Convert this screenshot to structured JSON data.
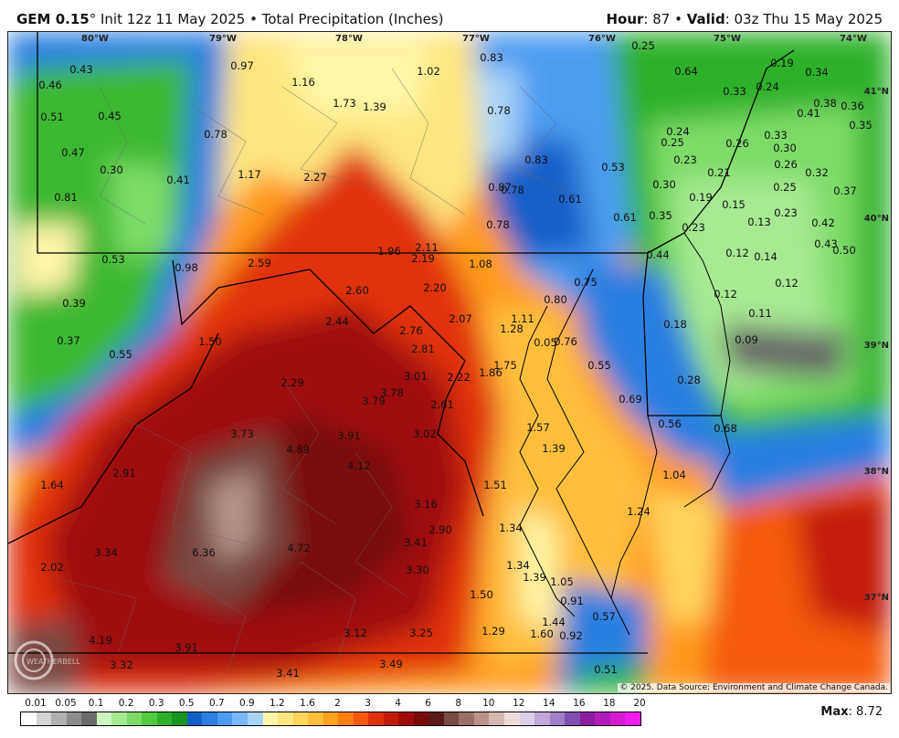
{
  "header": {
    "model": "GEM 0.15",
    "degree": "°",
    "init": "Init 12z 11 May 2025",
    "separator": "•",
    "product": "Total Precipitation (Inches)",
    "hour_label": "Hour",
    "hour_value": ": 87",
    "valid_label": "Valid",
    "valid_value": ": 03z Thu 15 May 2025"
  },
  "map": {
    "lon_labels": [
      "80°W",
      "79°W",
      "78°W",
      "77°W",
      "76°W",
      "75°W",
      "74°W"
    ],
    "lat_labels": [
      "41°N",
      "40°N",
      "39°N",
      "38°N",
      "37°N"
    ],
    "values": [
      "0.43",
      "0.46",
      "0.51",
      "0.45",
      "0.47",
      "0.30",
      "0.41",
      "0.81",
      "0.78",
      "0.97",
      "1.16",
      "1.02",
      "0.83",
      "1.73",
      "1.39",
      "0.78",
      "0.64",
      "0.25",
      "0.19",
      "0.34",
      "0.24",
      "0.33",
      "0.38",
      "0.41",
      "0.36",
      "0.35",
      "0.24",
      "0.25",
      "0.26",
      "0.33",
      "0.30",
      "0.23",
      "0.26",
      "0.32",
      "0.21",
      "0.83",
      "0.53",
      "0.30",
      "0.19",
      "0.15",
      "0.25",
      "0.37",
      "1.17",
      "2.27",
      "0.87",
      "0.78",
      "0.61",
      "0.78",
      "0.61",
      "0.35",
      "0.23",
      "0.13",
      "0.23",
      "0.42",
      "0.43",
      "0.50",
      "0.53",
      "0.98",
      "2.59",
      "1.96",
      "2.11",
      "2.19",
      "1.08",
      "0.44",
      "0.12",
      "0.14",
      "0.12",
      "0.12",
      "0.39",
      "2.60",
      "2.20",
      "0.80",
      "0.75",
      "0.18",
      "0.11",
      "0.37",
      "0.55",
      "1.50",
      "2.44",
      "2.76",
      "2.07",
      "1.11",
      "1.28",
      "0.05",
      "0.76",
      "0.09",
      "2.81",
      "1.75",
      "3.01",
      "2.22",
      "1.86",
      "0.55",
      "0.28",
      "2.29",
      "3.79",
      "3.78",
      "2.61",
      "0.69",
      "3.73",
      "3.91",
      "3.02",
      "1.57",
      "0.56",
      "0.68",
      "4.89",
      "1.39",
      "2.91",
      "4.12",
      "1.64",
      "1.51",
      "1.04",
      "3.16",
      "1.24",
      "2.90",
      "1.34",
      "3.34",
      "6.36",
      "4.72",
      "3.41",
      "2.02",
      "3.30",
      "1.34",
      "1.39",
      "1.05",
      "1.50",
      "0.91",
      "1.44",
      "0.57",
      "3.12",
      "3.25",
      "1.29",
      "1.60",
      "0.92",
      "4.19",
      "3.91",
      "3.32",
      "3.41",
      "3.49",
      "0.51"
    ],
    "copyright": "© 2025. Data Source: Environment and Climate Change Canada.",
    "watermark": "WEATHERBELL"
  },
  "legend": {
    "labels": [
      "0.01",
      "0.05",
      "0.1",
      "0.2",
      "0.3",
      "0.5",
      "0.7",
      "0.9",
      "1.2",
      "1.6",
      "2",
      "3",
      "4",
      "6",
      "8",
      "10",
      "12",
      "14",
      "16",
      "18",
      "20"
    ],
    "colors": [
      "#ffffff",
      "#d4d4d4",
      "#b0b0b0",
      "#8c8c8c",
      "#6a6a6a",
      "#cdf5c0",
      "#a6ea92",
      "#7ddc68",
      "#52c93f",
      "#2fb02a",
      "#1b9420",
      "#1560c8",
      "#2c7fe0",
      "#4c9cf0",
      "#78b8f6",
      "#a8d4fa",
      "#fff6a8",
      "#ffe680",
      "#ffd55c",
      "#ffbf3c",
      "#ffa21e",
      "#ff7f10",
      "#f55a0c",
      "#e03208",
      "#c41a08",
      "#a00c0a",
      "#7a0a0a",
      "#5a1a1a",
      "#7a4a44",
      "#9a7068",
      "#b8948c",
      "#d4b8b2",
      "#ecdcd8",
      "#dcd0e8",
      "#c0a8d8",
      "#a080c8",
      "#8050b0",
      "#8c1ca0",
      "#b01cb8",
      "#d41cd0",
      "#ee1cec"
    ]
  },
  "max": {
    "label": "Max",
    "value": ": 8.72"
  }
}
